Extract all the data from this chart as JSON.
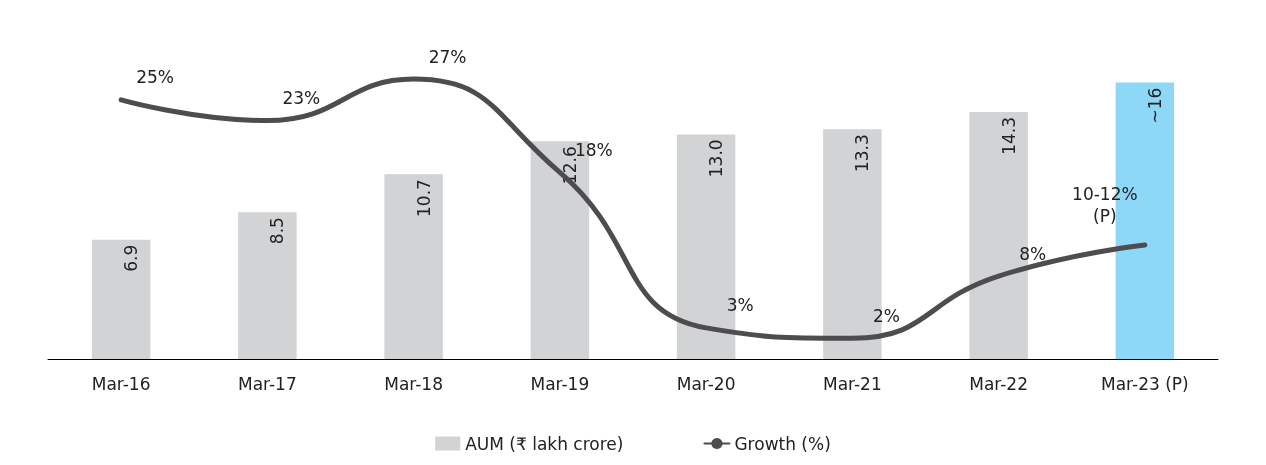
{
  "chart_data": {
    "type": "bar",
    "categories": [
      "Mar-16",
      "Mar-17",
      "Mar-18",
      "Mar-19",
      "Mar-20",
      "Mar-21",
      "Mar-22",
      "Mar-23 (P)"
    ],
    "annotations": [
      "10-12%\n(P)"
    ],
    "legend": "bottom",
    "grid": false,
    "marker": "none",
    "line_style": "solid",
    "series": [
      {
        "name": "AUM (₹ lakh crore)",
        "color": "#d1d3d4",
        "colors": [
          "#d1d3d4",
          "#d1d3d4",
          "#d1d3d4",
          "#d1d3d4",
          "#d1d3d4",
          "#d1d3d4",
          "#d1d3d4",
          "#8dd7f7"
        ],
        "values": [
          6.9,
          8.5,
          10.7,
          12.6,
          13.0,
          13.3,
          14.3,
          16
        ],
        "value_labels": [
          "6.9",
          "8.5",
          "10.7",
          "12.6",
          "13.0",
          "13.3",
          "14.3",
          "~16"
        ]
      },
      {
        "name": "Growth (%)",
        "type": "line",
        "axis": "y2",
        "color": "#4d4d4f",
        "values": [
          25,
          23,
          27,
          18,
          3,
          2,
          8,
          11
        ],
        "value_labels": [
          "25%",
          "23%",
          "27%",
          "18%",
          "3%",
          "2%",
          "8%",
          null
        ]
      }
    ]
  }
}
